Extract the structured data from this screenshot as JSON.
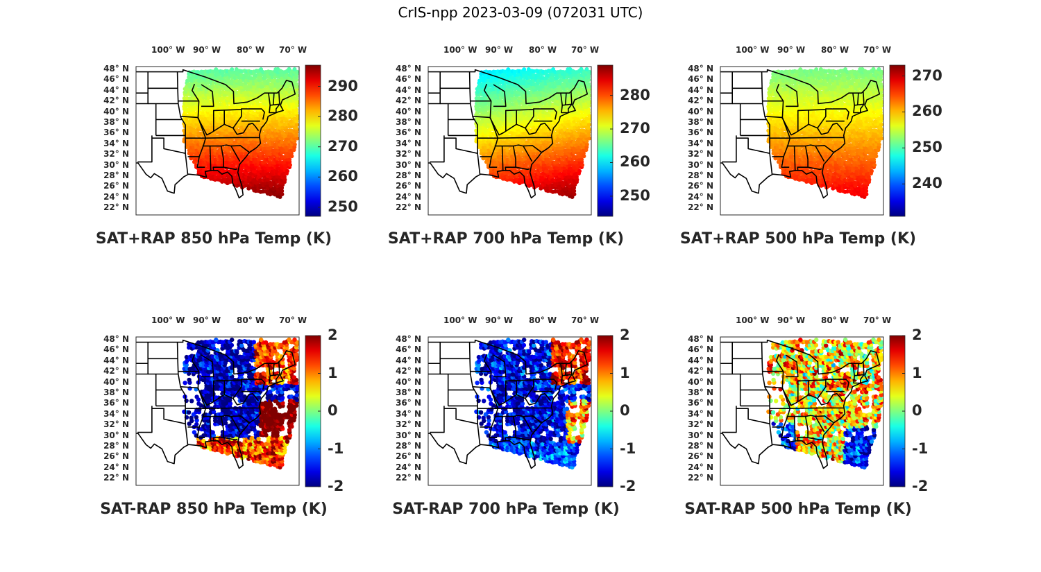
{
  "figure": {
    "title": "CrIS-npp 2023-03-09 (072031 UTC)"
  },
  "axes": {
    "lon_labels": [
      "100° W",
      "90° W",
      "80° W",
      "70° W"
    ],
    "lat_labels": [
      "48° N",
      "46° N",
      "44° N",
      "42° N",
      "40° N",
      "38° N",
      "36° N",
      "34° N",
      "32° N",
      "30° N",
      "28° N",
      "26° N",
      "24° N",
      "22° N"
    ]
  },
  "panels": [
    {
      "title": "SAT+RAP 850 hPa Temp (K)",
      "colorbar_ticks": [
        "290",
        "280",
        "270",
        "260",
        "250"
      ],
      "clim": [
        247,
        297
      ],
      "tick_values": [
        290,
        280,
        270,
        260,
        250
      ]
    },
    {
      "title": "SAT+RAP 700 hPa Temp (K)",
      "colorbar_ticks": [
        "280",
        "270",
        "260",
        "250"
      ],
      "clim": [
        244,
        289
      ],
      "tick_values": [
        280,
        270,
        260,
        250
      ]
    },
    {
      "title": "SAT+RAP 500 hPa Temp (K)",
      "colorbar_ticks": [
        "270",
        "260",
        "250",
        "240"
      ],
      "clim": [
        231,
        273
      ],
      "tick_values": [
        270,
        260,
        250,
        240
      ]
    },
    {
      "title": "SAT-RAP 850 hPa Temp (K)",
      "colorbar_ticks": [
        "2",
        "1",
        "0",
        "-1",
        "-2"
      ],
      "clim": [
        -2,
        2
      ],
      "tick_values": [
        2,
        1,
        0,
        -1,
        -2
      ]
    },
    {
      "title": "SAT-RAP 700 hPa Temp (K)",
      "colorbar_ticks": [
        "2",
        "1",
        "0",
        "-1",
        "-2"
      ],
      "clim": [
        -2,
        2
      ],
      "tick_values": [
        2,
        1,
        0,
        -1,
        -2
      ]
    },
    {
      "title": "SAT-RAP 500 hPa Temp (K)",
      "colorbar_ticks": [
        "2",
        "1",
        "0",
        "-1",
        "-2"
      ],
      "clim": [
        -2,
        2
      ],
      "tick_values": [
        2,
        1,
        0,
        -1,
        -2
      ]
    }
  ],
  "colormap": "jet",
  "colors": {
    "border": "#000000",
    "text": "#262626"
  }
}
